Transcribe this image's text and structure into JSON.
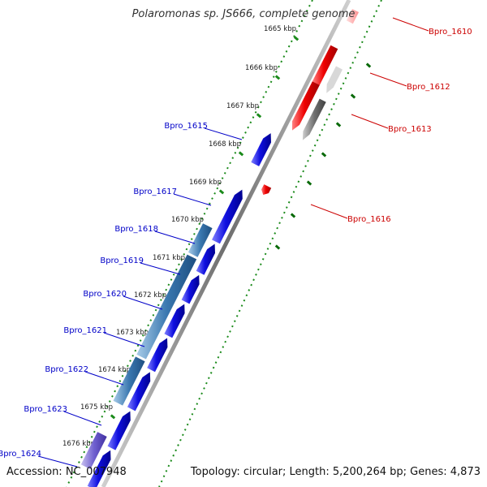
{
  "title": "Polaromonas sp. JS666, complete genome",
  "accession_text": "Accession: NC_007948",
  "topology_text": "Topology: circular; Length: 5,200,264 bp; Genes: 4,873",
  "colors": {
    "forward_gene": "#1515e6",
    "reverse_gene": "#ee0000",
    "pseudo_gene": "#777777",
    "operon_block": "#3a78b0",
    "forward_label": "#0000c8",
    "reverse_label": "#cc0000",
    "tick": "#1a8a1a",
    "reverse_tick": "#0a6a0a",
    "backbone": "#777777"
  },
  "scale_ticks": [
    "1665 kbp",
    "1666 kbp",
    "1667 kbp",
    "1668 kbp",
    "1669 kbp",
    "1670 kbp",
    "1671 kbp",
    "1672 kbp",
    "1673 kbp",
    "1674 kbp",
    "1675 kbp",
    "1676 kbp"
  ],
  "forward_gene_labels": [
    "Bpro_1615",
    "Bpro_1617",
    "Bpro_1618",
    "Bpro_1619",
    "Bpro_1620",
    "Bpro_1621",
    "Bpro_1622",
    "Bpro_1623",
    "Bpro_1624"
  ],
  "reverse_gene_labels": [
    "Bpro_1610",
    "Bpro_1612",
    "Bpro_1613",
    "Bpro_1616"
  ]
}
